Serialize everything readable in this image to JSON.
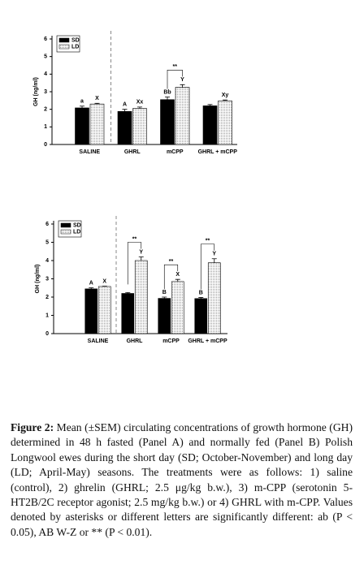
{
  "chart_data": [
    {
      "type": "bar",
      "y_label": "GH (ng/ml)",
      "categories": [
        "SALINE",
        "GHRL",
        "mCPP",
        "GHRL + mCPP"
      ],
      "ylim": [
        0,
        6
      ],
      "yticks": [
        0,
        1,
        2,
        3,
        4,
        5,
        6
      ],
      "legend": "top-left",
      "series": [
        {
          "name": "SD",
          "color": "#000000",
          "values": [
            2.08,
            1.88,
            2.55,
            2.2
          ],
          "errors": [
            0.1,
            0.12,
            0.15,
            0.07
          ],
          "letters": [
            "a",
            "A",
            "Bb",
            null
          ]
        },
        {
          "name": "LD",
          "color": "#ffffff",
          "values": [
            2.3,
            2.05,
            3.25,
            2.48
          ],
          "errors": [
            0.04,
            0.08,
            0.15,
            0.05
          ],
          "letters": [
            "X",
            "Xx",
            "Y",
            "Xy"
          ]
        }
      ],
      "significance": [
        {
          "category": "mCPP",
          "text": "**"
        }
      ]
    },
    {
      "type": "bar",
      "y_label": "GH (ng/ml)",
      "categories": [
        "SALINE",
        "GHRL",
        "mCPP",
        "GHRL + mCPP"
      ],
      "ylim": [
        0,
        6
      ],
      "yticks": [
        0,
        1,
        2,
        3,
        4,
        5,
        6
      ],
      "legend": "top-left",
      "series": [
        {
          "name": "SD",
          "color": "#000000",
          "values": [
            2.45,
            2.2,
            1.93,
            1.92
          ],
          "errors": [
            0.06,
            0.05,
            0.07,
            0.06
          ],
          "letters": [
            "A",
            null,
            "B",
            "B"
          ]
        },
        {
          "name": "LD",
          "color": "#ffffff",
          "values": [
            2.58,
            4.0,
            2.85,
            3.88
          ],
          "errors": [
            0.02,
            0.2,
            0.12,
            0.22
          ],
          "letters": [
            "X",
            "Y",
            "X",
            "Y"
          ]
        }
      ],
      "significance": [
        {
          "category": "GHRL",
          "text": "**"
        },
        {
          "category": "mCPP",
          "text": "**"
        },
        {
          "category": "GHRL + mCPP",
          "text": "**"
        }
      ]
    }
  ],
  "caption": {
    "label": "Figure 2:",
    "text": "Mean (±SEM) circulating concentrations of growth hormone (GH) determined in 48 h fasted (Panel A) and normally fed (Panel B) Polish Longwool ewes during the short day (SD; October-November) and long day (LD; April-May) seasons. The treatments were as follows: 1) saline (control), 2) ghrelin (GHRL; 2.5 μg/kg b.w.), 3) m-CPP (serotonin 5-HT2B/2C receptor agonist; 2.5 mg/kg b.w.) or 4) GHRL with m-CPP. Values denoted by asterisks or different letters are significantly different: ab (P &lt; 0.05), AB W-Z or ** (P &lt; 0.01)."
  }
}
